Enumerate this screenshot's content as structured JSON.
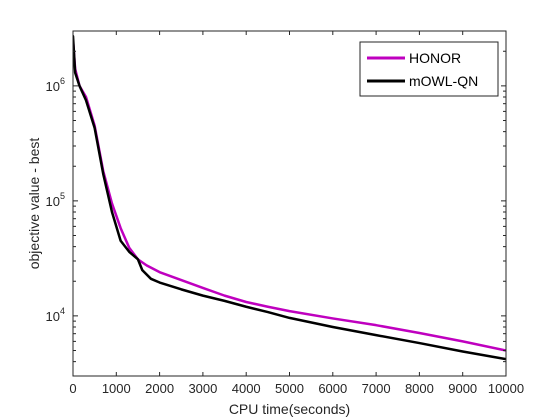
{
  "chart_data": {
    "type": "line",
    "title": "",
    "xlabel": "CPU time(seconds)",
    "ylabel": "objective value - best",
    "xlim": [
      0,
      10000
    ],
    "ylim": [
      3000,
      3000000
    ],
    "y_scale": "log",
    "grid": false,
    "legend_position": "top-right",
    "x_ticks": [
      0,
      1000,
      2000,
      3000,
      4000,
      5000,
      6000,
      7000,
      8000,
      9000,
      10000
    ],
    "x_tick_labels": [
      "0",
      "1000",
      "2000",
      "3000",
      "4000",
      "5000",
      "6000",
      "7000",
      "8000",
      "9000",
      "10000"
    ],
    "y_ticks": [
      {
        "value": 10000,
        "base": "10",
        "exp": "4"
      },
      {
        "value": 100000,
        "base": "10",
        "exp": "5"
      },
      {
        "value": 1000000,
        "base": "10",
        "exp": "6"
      }
    ],
    "series": [
      {
        "name": "HONOR",
        "color": "#bf00bf",
        "points": [
          [
            0,
            2500000
          ],
          [
            50,
            1400000
          ],
          [
            150,
            1000000
          ],
          [
            300,
            800000
          ],
          [
            500,
            450000
          ],
          [
            700,
            180000
          ],
          [
            900,
            95000
          ],
          [
            1100,
            58000
          ],
          [
            1300,
            39000
          ],
          [
            1500,
            31000
          ],
          [
            1700,
            27500
          ],
          [
            2000,
            24000
          ],
          [
            2500,
            20500
          ],
          [
            3000,
            17500
          ],
          [
            3500,
            15000
          ],
          [
            4000,
            13200
          ],
          [
            4500,
            12000
          ],
          [
            5000,
            11000
          ],
          [
            6000,
            9500
          ],
          [
            7000,
            8300
          ],
          [
            8000,
            7100
          ],
          [
            9000,
            6000
          ],
          [
            10000,
            5000
          ]
        ]
      },
      {
        "name": "mOWL-QN",
        "color": "#000000",
        "points": [
          [
            0,
            2700000
          ],
          [
            50,
            1300000
          ],
          [
            150,
            1000000
          ],
          [
            300,
            750000
          ],
          [
            500,
            430000
          ],
          [
            700,
            170000
          ],
          [
            900,
            80000
          ],
          [
            1100,
            45000
          ],
          [
            1300,
            36000
          ],
          [
            1500,
            31000
          ],
          [
            1600,
            25000
          ],
          [
            1800,
            21000
          ],
          [
            2000,
            19500
          ],
          [
            2500,
            17000
          ],
          [
            3000,
            15000
          ],
          [
            3500,
            13500
          ],
          [
            4000,
            12000
          ],
          [
            4500,
            10800
          ],
          [
            5000,
            9600
          ],
          [
            6000,
            8000
          ],
          [
            7000,
            6800
          ],
          [
            8000,
            5800
          ],
          [
            9000,
            4900
          ],
          [
            10000,
            4200
          ]
        ]
      }
    ]
  }
}
